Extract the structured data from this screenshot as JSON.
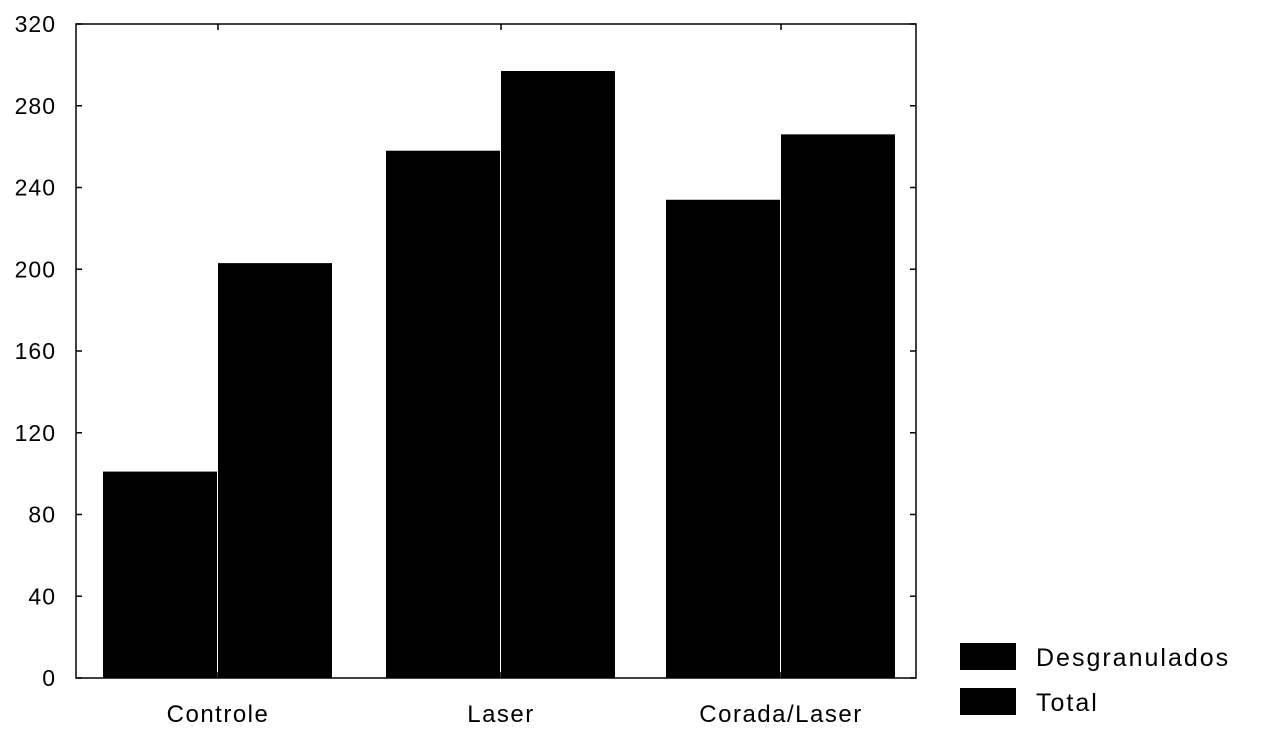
{
  "chart_data": {
    "type": "bar",
    "title": "",
    "xlabel": "",
    "ylabel": "",
    "categories": [
      "Controle",
      "Laser",
      "Corada/Laser"
    ],
    "series": [
      {
        "name": "Desgranulados",
        "values": [
          101,
          258,
          234
        ],
        "color": "#000000"
      },
      {
        "name": "Total",
        "values": [
          203,
          297,
          266
        ],
        "color": "#000000"
      }
    ],
    "ylim": [
      0,
      320
    ],
    "yticks": [
      0,
      40,
      80,
      120,
      160,
      200,
      240,
      280,
      320
    ],
    "grid": false,
    "legend_position": "bottom-right"
  }
}
